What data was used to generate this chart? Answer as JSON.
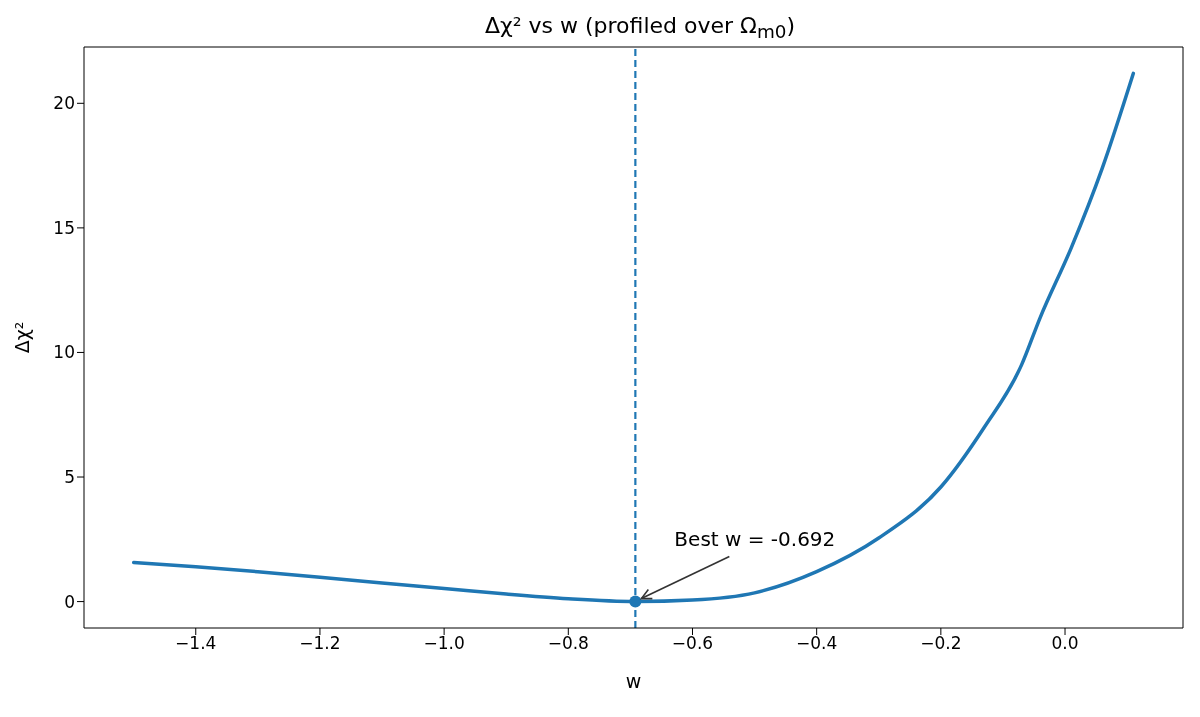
{
  "chart_data": {
    "type": "line",
    "title": "Δχ² vs w (profiled over Ω$_{m0}$)",
    "xlabel": "w",
    "ylabel": "Δχ²",
    "xlim": [
      -1.58,
      0.19
    ],
    "ylim": [
      -1.06,
      22.26
    ],
    "xticks": [
      {
        "value": -1.4,
        "label": "−1.4"
      },
      {
        "value": -1.2,
        "label": "−1.2"
      },
      {
        "value": -1.0,
        "label": "−1.0"
      },
      {
        "value": -0.8,
        "label": "−0.8"
      },
      {
        "value": -0.6,
        "label": "−0.6"
      },
      {
        "value": -0.4,
        "label": "−0.4"
      },
      {
        "value": -0.2,
        "label": "−0.2"
      },
      {
        "value": 0,
        "label": "0.0"
      }
    ],
    "yticks": [
      0,
      5,
      10,
      15,
      20
    ],
    "series": [
      {
        "color": "#1f77b4",
        "marker": "none",
        "line_style": "solid",
        "x": [
          -1.5,
          -1.4,
          -1.3,
          -1.2,
          -1.1,
          -1.0,
          -0.9,
          -0.8,
          -0.692,
          -0.6,
          -0.5,
          -0.4,
          -0.3,
          -0.2,
          -0.13,
          -0.07,
          -0.04,
          0.01,
          0.06,
          0.11
        ],
        "values": [
          1.57,
          1.4,
          1.2,
          0.98,
          0.75,
          0.53,
          0.3,
          0.11,
          0,
          0.06,
          0.35,
          1.2,
          2.55,
          4.6,
          7.0,
          9.5,
          11.4,
          14.2,
          17.4,
          21.2
        ]
      },
      {
        "type": "scatter",
        "color": "#1f77b4",
        "marker": "circle",
        "x": [
          -0.692
        ],
        "values": [
          0
        ]
      }
    ],
    "ref_lines": [
      {
        "axis": "x",
        "value": -0.692,
        "color": "#1f77b4",
        "line_style": "dashed"
      }
    ],
    "annotations": [
      {
        "text": "Best w = -0.692",
        "x": -0.692,
        "y": 0
      }
    ]
  }
}
